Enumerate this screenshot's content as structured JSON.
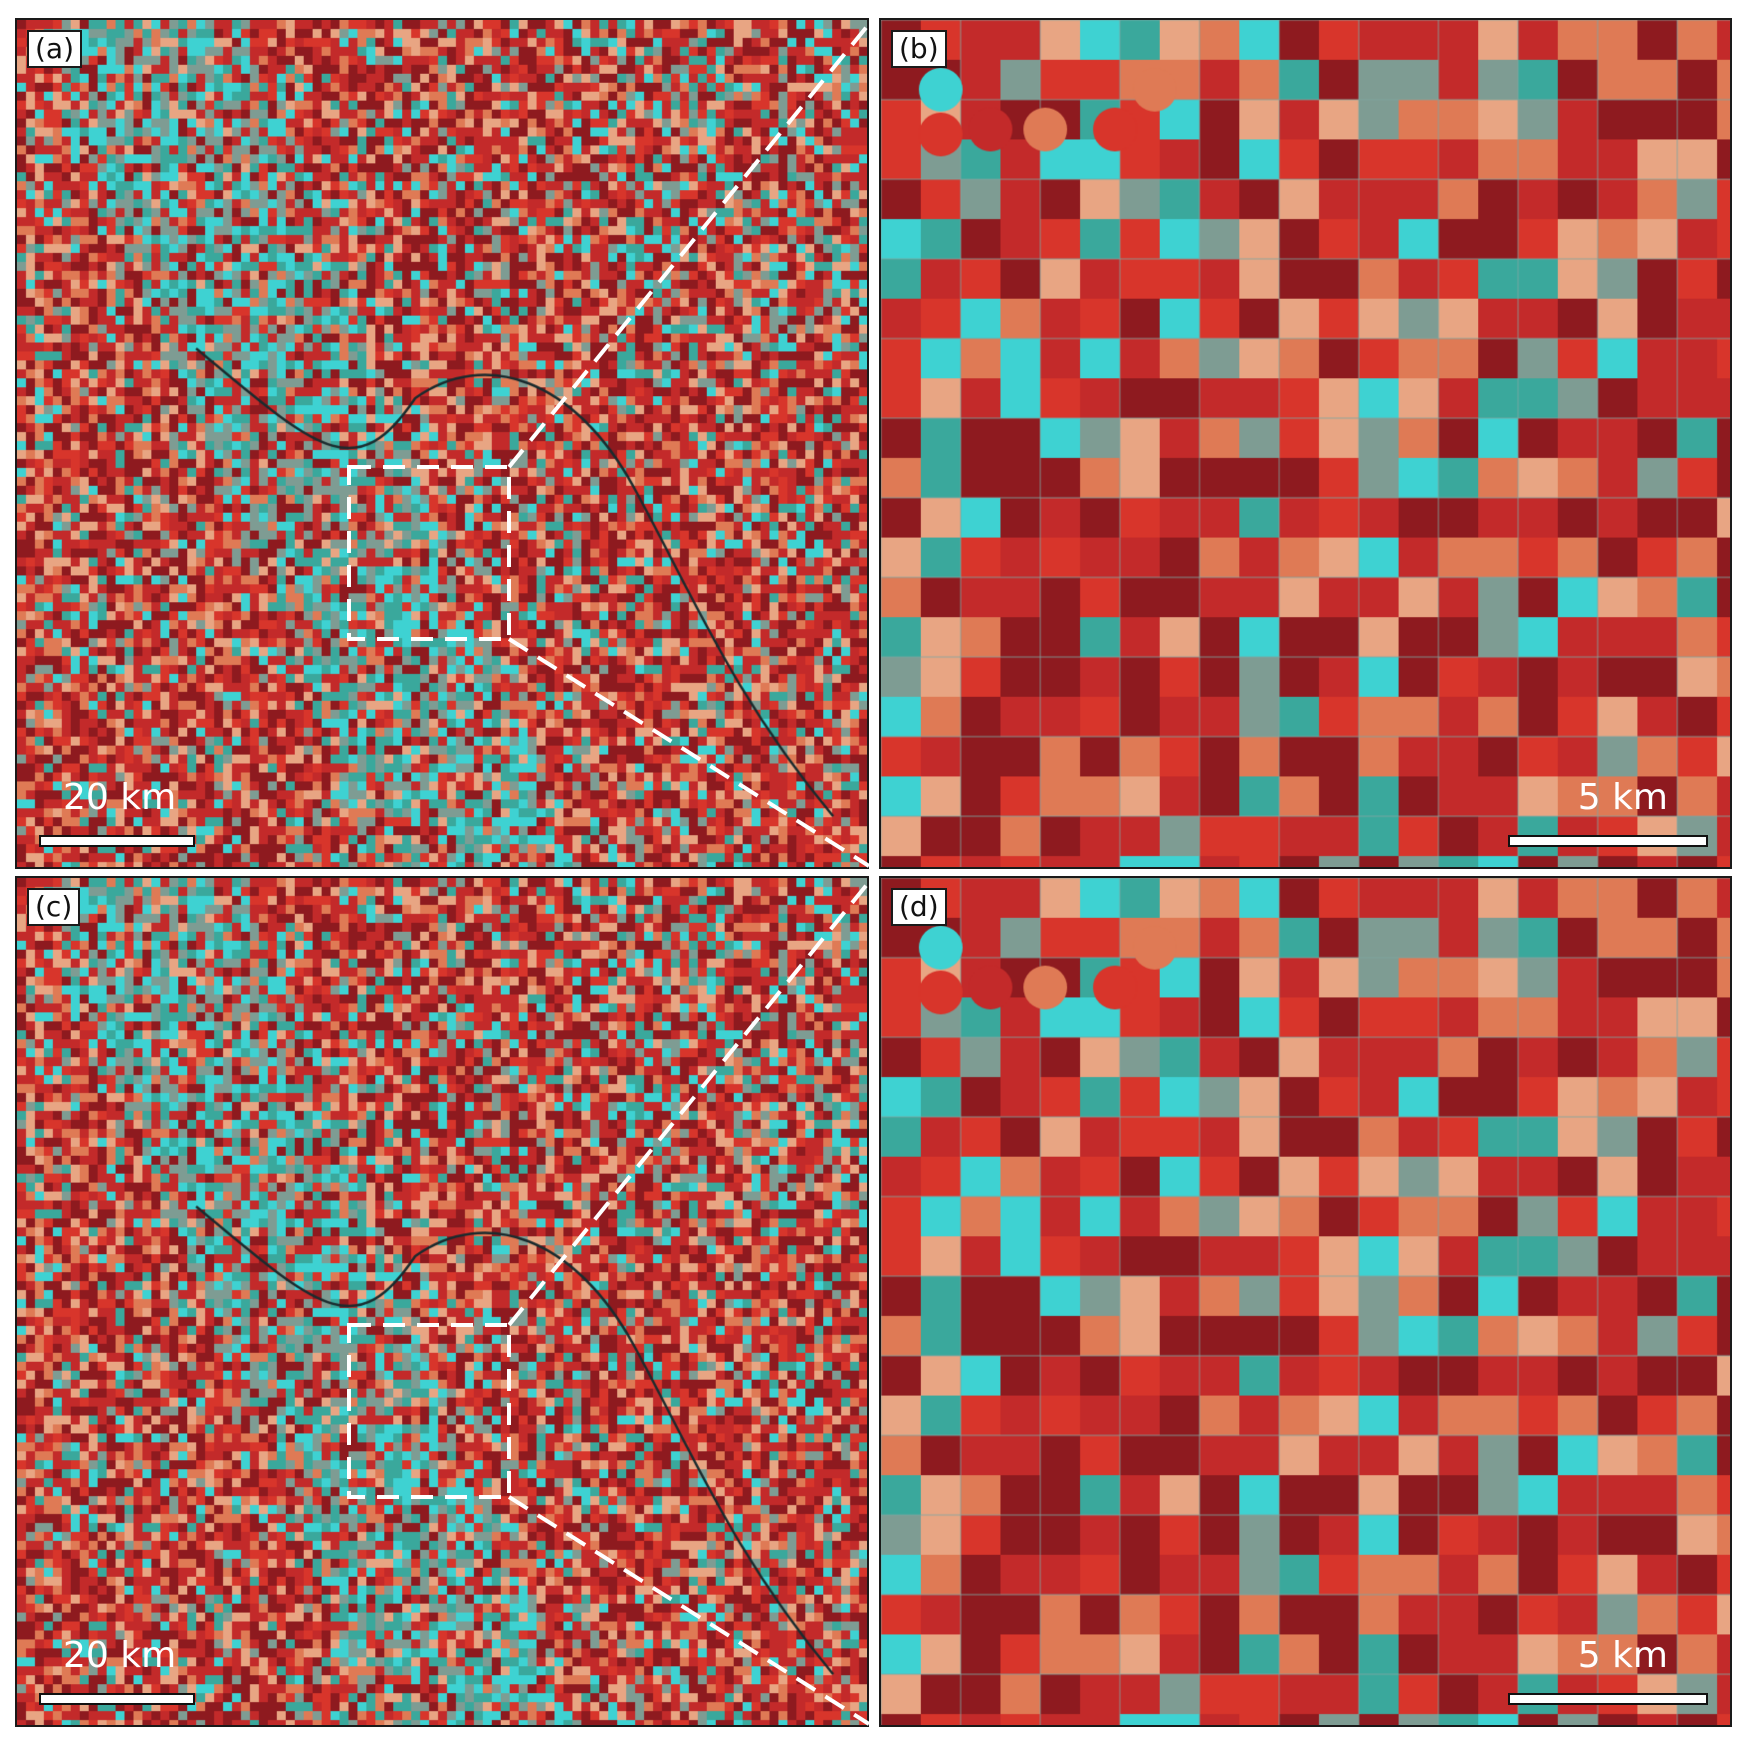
{
  "figure": {
    "panels": [
      {
        "id": "a",
        "label": "(a)",
        "scale_text": "20 km",
        "view": "overview"
      },
      {
        "id": "b",
        "label": "(b)",
        "scale_text": "5 km",
        "view": "zoom"
      },
      {
        "id": "c",
        "label": "(c)",
        "scale_text": "20 km",
        "view": "overview"
      },
      {
        "id": "d",
        "label": "(d)",
        "scale_text": "5 km",
        "view": "zoom"
      }
    ]
  },
  "palette": {
    "dark_red": "#8e1a1f",
    "red": "#c32a2a",
    "bright_red": "#d8352b",
    "salmon": "#df7a55",
    "peach": "#e8a583",
    "cyan": "#3ed2d2",
    "teal": "#3aa89c",
    "grey_teal": "#7e9c93",
    "field_line": "#7fa5a3",
    "river": "#1b2b2e",
    "zoom_box": "#ffffff"
  }
}
